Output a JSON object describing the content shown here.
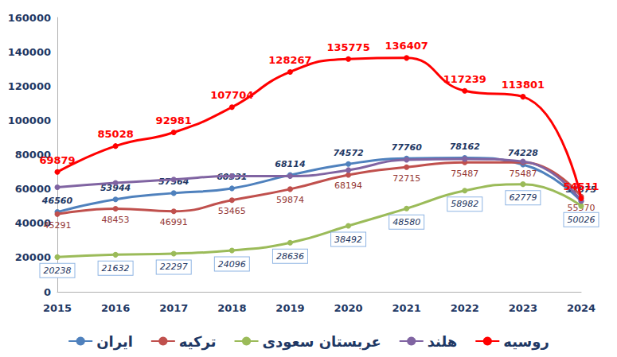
{
  "chart_data": {
    "type": "line",
    "categories": [
      "2015",
      "2016",
      "2017",
      "2018",
      "2019",
      "2020",
      "2021",
      "2022",
      "2023",
      "2024"
    ],
    "series": [
      {
        "name": "ایران",
        "color": "#4f81bd",
        "data_labels": true,
        "values": [
          46560,
          53944,
          57564,
          60331,
          68114,
          74572,
          77760,
          78162,
          74228,
          52875
        ]
      },
      {
        "name": "ترکیه",
        "color": "#c0504d",
        "data_labels": true,
        "values": [
          45291,
          48453,
          46991,
          53465,
          59874,
          68194,
          72715,
          75487,
          75487,
          55570
        ]
      },
      {
        "name": "عربستان سعودی",
        "color": "#9bbb59",
        "data_labels": true,
        "values": [
          20238,
          21632,
          22297,
          24096,
          28636,
          38492,
          48580,
          58982,
          62779,
          50026
        ]
      },
      {
        "name": "هلند",
        "color": "#8064a2",
        "data_labels": false,
        "values": [
          61000,
          63500,
          65500,
          67500,
          67500,
          71000,
          77000,
          77500,
          76000,
          53000
        ]
      },
      {
        "name": "روسیه",
        "color": "#ff0000",
        "data_labels": true,
        "values": [
          69879,
          85028,
          92981,
          107704,
          128267,
          135775,
          136407,
          117239,
          113801,
          54511
        ]
      }
    ],
    "ylim": [
      0,
      160000
    ],
    "yticks": [
      0,
      20000,
      40000,
      60000,
      80000,
      100000,
      120000,
      140000,
      160000
    ],
    "grid": false,
    "legend": "bottom",
    "marker": "circle",
    "line_style": "smooth"
  }
}
